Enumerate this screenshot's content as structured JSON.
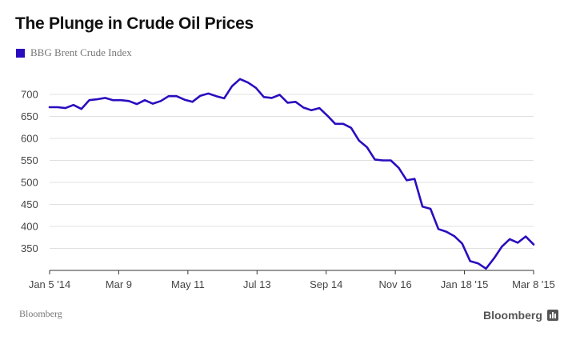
{
  "title": "The Plunge in Crude Oil Prices",
  "source": "Bloomberg",
  "brand": "Bloomberg",
  "colors": {
    "series": "#2a0dbf",
    "grid": "#e0e0e0",
    "axis": "#333333"
  },
  "chart_data": {
    "type": "line",
    "title": "The Plunge in Crude Oil Prices",
    "xlabel": "",
    "ylabel": "",
    "ylim": [
      300,
      740
    ],
    "yticks": [
      350,
      400,
      450,
      500,
      550,
      600,
      650,
      700
    ],
    "xtick_labels": [
      "Jan 5 '14",
      "Mar 9",
      "May 11",
      "Jul 13",
      "Sep 14",
      "Nov 16",
      "Jan 18 '15",
      "Mar 8 '15"
    ],
    "grid": true,
    "legend": "top-left",
    "series": [
      {
        "name": "BBG Brent Crude Index",
        "color": "#2a0dbf",
        "values": [
          671,
          671,
          669,
          676,
          667,
          687,
          689,
          692,
          687,
          687,
          685,
          678,
          687,
          679,
          685,
          696,
          696,
          688,
          683,
          697,
          702,
          696,
          691,
          719,
          735,
          727,
          715,
          694,
          692,
          699,
          681,
          683,
          670,
          664,
          669,
          652,
          633,
          633,
          624,
          595,
          580,
          552,
          550,
          550,
          533,
          505,
          508,
          445,
          440,
          394,
          388,
          378,
          361,
          321,
          316,
          304,
          327,
          354,
          371,
          363,
          377,
          359
        ]
      }
    ]
  }
}
